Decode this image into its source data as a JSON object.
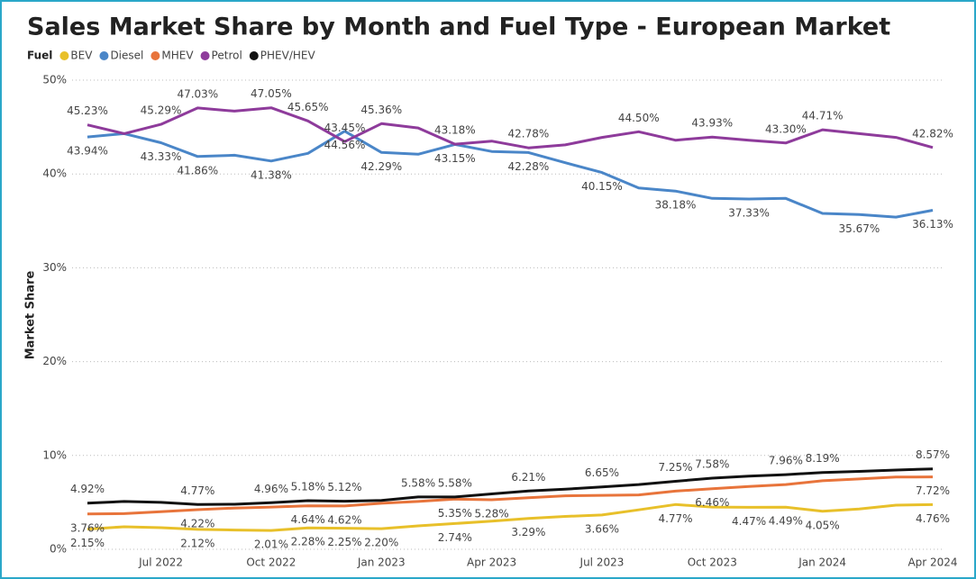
{
  "chart_data": {
    "type": "line",
    "title": "Sales Market Share by Month and Fuel Type - European Market",
    "legend_title": "Fuel",
    "y_label": "Market Share",
    "categories": [
      null,
      null,
      "Jul 2022",
      null,
      null,
      "Oct 2022",
      null,
      null,
      "Jan 2023",
      null,
      null,
      "Apr 2023",
      null,
      null,
      "Jul 2023",
      null,
      null,
      "Oct 2023",
      null,
      null,
      "Jan 2024",
      null,
      null,
      "Apr 2024"
    ],
    "ylim": [
      0,
      50
    ],
    "yticks": [
      {
        "value": 0,
        "label": "0%"
      },
      {
        "value": 10,
        "label": "10%"
      },
      {
        "value": 20,
        "label": "20%"
      },
      {
        "value": 30,
        "label": "30%"
      },
      {
        "value": 40,
        "label": "40%"
      },
      {
        "value": 50,
        "label": "50%"
      }
    ],
    "grid": true,
    "series": [
      {
        "name": "BEV",
        "color": "#e8c02a",
        "values": [
          2.15,
          2.4,
          2.3,
          2.12,
          2.05,
          2.01,
          2.28,
          2.25,
          2.2,
          2.5,
          2.74,
          3.0,
          3.29,
          3.5,
          3.66,
          4.2,
          4.77,
          4.5,
          4.47,
          4.49,
          4.05,
          4.3,
          4.7,
          4.76
        ],
        "value_labels": [
          "2.15%",
          null,
          null,
          "2.12%",
          null,
          "2.01%",
          "2.28%",
          "2.25%",
          "2.20%",
          null,
          "2.74%",
          null,
          "3.29%",
          null,
          "3.66%",
          null,
          "4.77%",
          null,
          "4.47%",
          "4.49%",
          "4.05%",
          null,
          null,
          "4.76%"
        ]
      },
      {
        "name": "Diesel",
        "color": "#4a86c8",
        "values": [
          43.94,
          44.3,
          43.33,
          41.86,
          42.0,
          41.38,
          42.2,
          44.56,
          42.29,
          42.1,
          43.15,
          42.4,
          42.28,
          41.2,
          40.15,
          38.5,
          38.18,
          37.4,
          37.33,
          37.4,
          35.8,
          35.67,
          35.4,
          36.13
        ],
        "value_labels": [
          "43.94%",
          null,
          "43.33%",
          "41.86%",
          null,
          "41.38%",
          null,
          "44.56%",
          "42.29%",
          null,
          "43.15%",
          null,
          "42.28%",
          null,
          "40.15%",
          null,
          "38.18%",
          null,
          "37.33%",
          null,
          null,
          "35.67%",
          null,
          "36.13%"
        ]
      },
      {
        "name": "MHEV",
        "color": "#e8743b",
        "values": [
          3.76,
          3.8,
          4.0,
          4.22,
          4.4,
          4.5,
          4.64,
          4.62,
          4.9,
          5.1,
          5.35,
          5.28,
          5.5,
          5.7,
          5.75,
          5.8,
          6.2,
          6.46,
          6.7,
          6.9,
          7.3,
          7.5,
          7.7,
          7.72
        ],
        "value_labels": [
          "3.76%",
          null,
          null,
          "4.22%",
          null,
          null,
          "4.64%",
          "4.62%",
          null,
          null,
          "5.35%",
          "5.28%",
          null,
          null,
          null,
          null,
          null,
          "6.46%",
          null,
          null,
          null,
          null,
          null,
          "7.72%"
        ]
      },
      {
        "name": "Petrol",
        "color": "#8e3b9b",
        "values": [
          45.23,
          44.3,
          45.29,
          47.03,
          46.7,
          47.05,
          45.65,
          43.45,
          45.36,
          44.9,
          43.18,
          43.5,
          42.78,
          43.1,
          43.9,
          44.5,
          43.6,
          43.93,
          43.6,
          43.3,
          44.71,
          44.3,
          43.9,
          42.82
        ],
        "value_labels": [
          "45.23%",
          null,
          "45.29%",
          "47.03%",
          null,
          "47.05%",
          "45.65%",
          "43.45%",
          "45.36%",
          null,
          "43.18%",
          null,
          "42.78%",
          null,
          null,
          "44.50%",
          null,
          "43.93%",
          null,
          "43.30%",
          "44.71%",
          null,
          null,
          "42.82%"
        ]
      },
      {
        "name": "PHEV/HEV",
        "color": "#111111",
        "values": [
          4.92,
          5.1,
          5.0,
          4.77,
          4.8,
          4.96,
          5.18,
          5.12,
          5.2,
          5.58,
          5.58,
          5.9,
          6.21,
          6.4,
          6.65,
          6.9,
          7.25,
          7.58,
          7.8,
          7.96,
          8.19,
          8.3,
          8.45,
          8.57
        ],
        "value_labels": [
          "4.92%",
          null,
          null,
          "4.77%",
          null,
          "4.96%",
          "5.18%",
          "5.12%",
          null,
          "5.58%",
          "5.58%",
          null,
          "6.21%",
          null,
          "6.65%",
          null,
          "7.25%",
          "7.58%",
          null,
          "7.96%",
          "8.19%",
          null,
          null,
          "8.57%"
        ]
      }
    ]
  }
}
